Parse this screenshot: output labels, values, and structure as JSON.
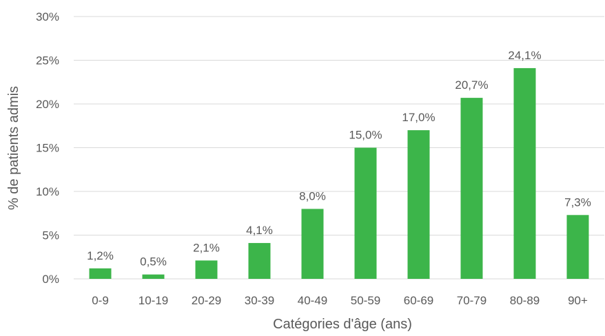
{
  "chart_data": {
    "type": "bar",
    "title": "",
    "xlabel": "Catégories d'âge (ans)",
    "ylabel": "% de patients admis",
    "categories": [
      "0-9",
      "10-19",
      "20-29",
      "30-39",
      "40-49",
      "50-59",
      "60-69",
      "70-79",
      "80-89",
      "90+"
    ],
    "values": [
      1.2,
      0.5,
      2.1,
      4.1,
      8.0,
      15.0,
      17.0,
      20.7,
      24.1,
      7.3
    ],
    "data_labels": [
      "1,2%",
      "0,5%",
      "2,1%",
      "4,1%",
      "8,0%",
      "15,0%",
      "17,0%",
      "20,7%",
      "24,1%",
      "7,3%"
    ],
    "ylim": [
      0,
      30
    ],
    "yticks": [
      0,
      5,
      10,
      15,
      20,
      25,
      30
    ],
    "ytick_labels": [
      "0%",
      "5%",
      "10%",
      "15%",
      "20%",
      "25%",
      "30%"
    ],
    "grid": true,
    "legend": "none",
    "colors": {
      "bar": "#3CB54A",
      "grid": "#D9D9D9",
      "text": "#595959"
    }
  }
}
